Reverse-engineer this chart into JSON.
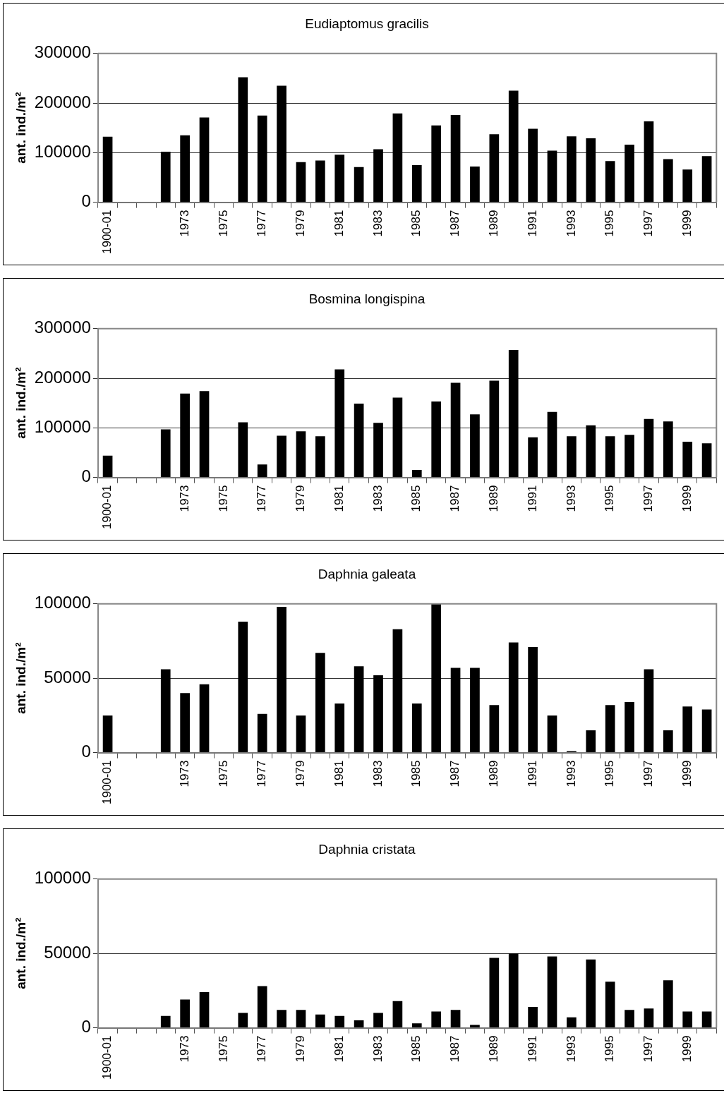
{
  "chart_data": [
    {
      "type": "bar",
      "title": "Eudiaptomus gracilis",
      "ylabel": "ant. ind./m²",
      "categories": [
        "1900-01",
        null,
        null,
        null,
        "1973",
        null,
        "1975",
        null,
        "1977",
        null,
        "1979",
        null,
        "1981",
        null,
        "1983",
        null,
        "1985",
        null,
        "1987",
        null,
        "1989",
        null,
        "1991",
        null,
        "1993",
        null,
        "1995",
        null,
        "1997",
        null,
        "1999",
        null
      ],
      "values": [
        132000,
        null,
        null,
        102000,
        135000,
        171000,
        null,
        252000,
        175000,
        235000,
        81000,
        84000,
        96000,
        71000,
        107000,
        179000,
        75000,
        155000,
        176000,
        72000,
        137000,
        225000,
        148000,
        104000,
        133000,
        129000,
        83000,
        116000,
        163000,
        87000,
        66000,
        93000
      ],
      "color": "#000000",
      "ylim": [
        0,
        300000
      ],
      "yticks": [
        0,
        100000,
        200000,
        300000
      ],
      "grid": "y",
      "legend": false
    },
    {
      "type": "bar",
      "title": "Bosmina longispina",
      "ylabel": "ant. ind./m²",
      "categories": [
        "1900-01",
        null,
        null,
        null,
        "1973",
        null,
        "1975",
        null,
        "1977",
        null,
        "1979",
        null,
        "1981",
        null,
        "1983",
        null,
        "1985",
        null,
        "1987",
        null,
        "1989",
        null,
        "1991",
        null,
        "1993",
        null,
        "1995",
        null,
        "1997",
        null,
        "1999",
        null
      ],
      "values": [
        44000,
        null,
        null,
        97000,
        169000,
        174000,
        null,
        111000,
        26000,
        84000,
        93000,
        83000,
        218000,
        149000,
        110000,
        161000,
        15000,
        153000,
        191000,
        127000,
        195000,
        257000,
        81000,
        132000,
        83000,
        105000,
        83000,
        86000,
        118000,
        113000,
        72000,
        69000
      ],
      "color": "#000000",
      "ylim": [
        0,
        300000
      ],
      "yticks": [
        0,
        100000,
        200000,
        300000
      ],
      "grid": "y",
      "legend": false
    },
    {
      "type": "bar",
      "title": "Daphnia galeata",
      "ylabel": "ant. ind./m²",
      "categories": [
        "1900-01",
        null,
        null,
        null,
        "1973",
        null,
        "1975",
        null,
        "1977",
        null,
        "1979",
        null,
        "1981",
        null,
        "1983",
        null,
        "1985",
        null,
        "1987",
        null,
        "1989",
        null,
        "1991",
        null,
        "1993",
        null,
        "1995",
        null,
        "1997",
        null,
        "1999",
        null
      ],
      "values": [
        25000,
        null,
        null,
        56000,
        40000,
        46000,
        null,
        88000,
        26000,
        98000,
        25000,
        67000,
        33000,
        58000,
        52000,
        83000,
        33000,
        100000,
        57000,
        57000,
        32000,
        74000,
        71000,
        25000,
        1000,
        15000,
        32000,
        34000,
        56000,
        15000,
        31000,
        29000
      ],
      "color": "#000000",
      "ylim": [
        0,
        100000
      ],
      "yticks": [
        0,
        50000,
        100000
      ],
      "grid": "y",
      "legend": false
    },
    {
      "type": "bar",
      "title": "Daphnia cristata",
      "ylabel": "ant. ind./m²",
      "categories": [
        "1900-01",
        null,
        null,
        null,
        "1973",
        null,
        "1975",
        null,
        "1977",
        null,
        "1979",
        null,
        "1981",
        null,
        "1983",
        null,
        "1985",
        null,
        "1987",
        null,
        "1989",
        null,
        "1991",
        null,
        "1993",
        null,
        "1995",
        null,
        "1997",
        null,
        "1999",
        null
      ],
      "values": [
        null,
        null,
        null,
        8000,
        19000,
        24000,
        null,
        10000,
        28000,
        12000,
        12000,
        9000,
        8000,
        5000,
        10000,
        18000,
        3000,
        11000,
        12000,
        2000,
        47000,
        50000,
        14000,
        48000,
        7000,
        46000,
        31000,
        12000,
        13000,
        32000,
        11000,
        11000
      ],
      "color": "#000000",
      "ylim": [
        0,
        100000
      ],
      "yticks": [
        0,
        50000,
        100000
      ],
      "grid": "y",
      "legend": false
    }
  ]
}
